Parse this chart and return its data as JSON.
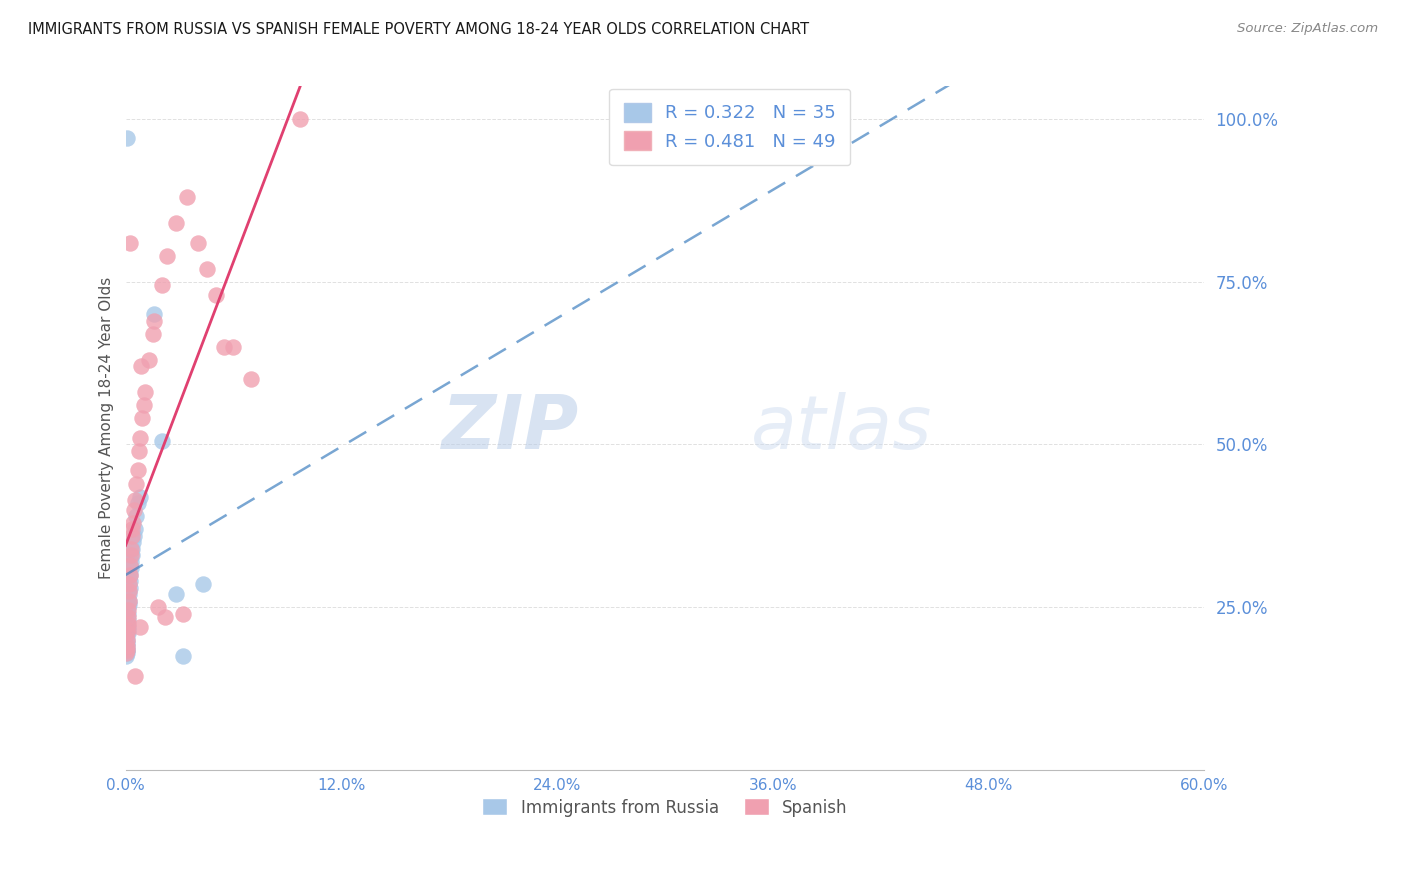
{
  "title": "IMMIGRANTS FROM RUSSIA VS SPANISH FEMALE POVERTY AMONG 18-24 YEAR OLDS CORRELATION CHART",
  "source": "Source: ZipAtlas.com",
  "ylabel": "Female Poverty Among 18-24 Year Olds",
  "legend_label_russia": "Immigrants from Russia",
  "legend_label_spanish": "Spanish",
  "legend_r_russia": "R = 0.322",
  "legend_n_russia": "N = 35",
  "legend_r_spanish": "R = 0.481",
  "legend_n_spanish": "N = 49",
  "color_russia": "#A8C8E8",
  "color_spanish": "#F0A0B0",
  "color_russia_line": "#4080C0",
  "color_spanish_line": "#E04070",
  "color_axis_text": "#5B8FD9",
  "color_ylabel": "#555555",
  "watermark_text": "ZIP",
  "watermark_text2": "atlas",
  "background_color": "#FFFFFF",
  "grid_color": "#CCCCCC",
  "russia_x": [
    0.0003,
    0.0005,
    0.0007,
    0.0008,
    0.0009,
    0.001,
    0.0011,
    0.0012,
    0.0013,
    0.0014,
    0.0015,
    0.0016,
    0.0017,
    0.0018,
    0.002,
    0.0022,
    0.0024,
    0.0025,
    0.0028,
    0.003,
    0.0033,
    0.0036,
    0.004,
    0.0045,
    0.005,
    0.006,
    0.007,
    0.008,
    0.016,
    0.02,
    0.0007,
    0.001,
    0.028,
    0.032,
    0.043
  ],
  "russia_y": [
    0.175,
    0.18,
    0.185,
    0.19,
    0.195,
    0.2,
    0.21,
    0.215,
    0.22,
    0.23,
    0.24,
    0.25,
    0.255,
    0.26,
    0.27,
    0.28,
    0.29,
    0.3,
    0.31,
    0.32,
    0.33,
    0.34,
    0.35,
    0.36,
    0.37,
    0.39,
    0.41,
    0.42,
    0.7,
    0.505,
    0.97,
    0.185,
    0.27,
    0.175,
    0.285
  ],
  "spanish_x": [
    0.0003,
    0.0005,
    0.0007,
    0.0008,
    0.0009,
    0.001,
    0.0012,
    0.0013,
    0.0015,
    0.0017,
    0.0019,
    0.002,
    0.0022,
    0.0025,
    0.0028,
    0.003,
    0.0035,
    0.0038,
    0.004,
    0.0045,
    0.005,
    0.006,
    0.007,
    0.0075,
    0.008,
    0.009,
    0.01,
    0.011,
    0.013,
    0.015,
    0.016,
    0.02,
    0.023,
    0.028,
    0.034,
    0.04,
    0.045,
    0.05,
    0.06,
    0.07,
    0.022,
    0.032,
    0.0027,
    0.0055,
    0.055,
    0.008,
    0.018,
    0.097,
    0.0085
  ],
  "spanish_y": [
    0.18,
    0.185,
    0.19,
    0.2,
    0.21,
    0.215,
    0.225,
    0.235,
    0.245,
    0.26,
    0.275,
    0.285,
    0.3,
    0.315,
    0.33,
    0.34,
    0.36,
    0.37,
    0.38,
    0.4,
    0.415,
    0.44,
    0.46,
    0.49,
    0.51,
    0.54,
    0.56,
    0.58,
    0.63,
    0.67,
    0.69,
    0.745,
    0.79,
    0.84,
    0.88,
    0.81,
    0.77,
    0.73,
    0.65,
    0.6,
    0.235,
    0.24,
    0.81,
    0.145,
    0.65,
    0.22,
    0.25,
    1.0,
    0.62
  ],
  "xmin": 0.0,
  "xmax": 0.6,
  "ymin": 0.0,
  "ymax": 1.05,
  "ytick_positions": [
    0.0,
    0.25,
    0.5,
    0.75,
    1.0
  ],
  "ytick_labels": [
    "",
    "25.0%",
    "50.0%",
    "75.0%",
    "100.0%"
  ],
  "xtick_positions": [
    0.0,
    0.12,
    0.24,
    0.36,
    0.48,
    0.6
  ],
  "xtick_labels": [
    "0.0%",
    "12.0%",
    "24.0%",
    "36.0%",
    "48.0%",
    "60.0%"
  ]
}
